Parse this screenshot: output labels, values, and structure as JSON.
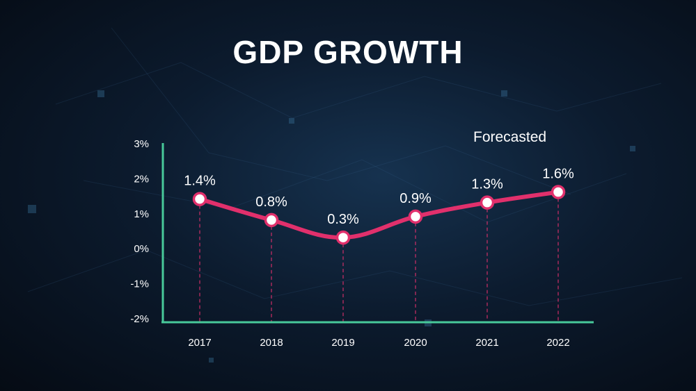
{
  "title": "GDP GROWTH",
  "annotation": "Forecasted",
  "colors": {
    "line": "#e1306c",
    "axis": "#48c99a",
    "marker_fill": "#ffffff",
    "guide": "#e1306c"
  },
  "chart_data": {
    "type": "line",
    "title": "GDP GROWTH",
    "categories": [
      "2017",
      "2018",
      "2019",
      "2020",
      "2021",
      "2022"
    ],
    "series": [
      {
        "values": [
          1.4,
          0.8,
          0.3,
          0.9,
          1.3,
          1.6
        ]
      }
    ],
    "data_labels": [
      "1.4%",
      "0.8%",
      "0.3%",
      "0.9%",
      "1.3%",
      "1.6%"
    ],
    "y_ticks": [
      "3%",
      "2%",
      "1%",
      "0%",
      "-1%",
      "-2%"
    ],
    "y_tick_values": [
      3,
      2,
      1,
      0,
      -1,
      -2
    ],
    "ylim": [
      -2,
      3
    ],
    "xlabel": "",
    "ylabel": "",
    "grid": false,
    "legend": "none"
  }
}
